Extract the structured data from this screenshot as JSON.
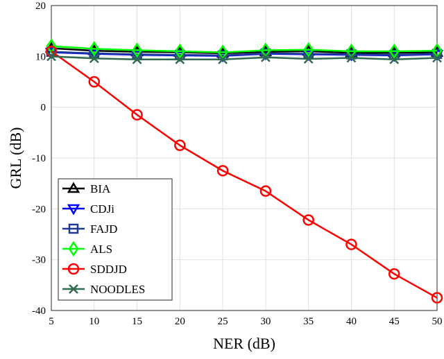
{
  "chart_data": {
    "type": "line",
    "xlabel": "NER (dB)",
    "ylabel": "GRL (dB)",
    "xlim": [
      5,
      50
    ],
    "ylim": [
      -40,
      20
    ],
    "xticks": [
      5,
      10,
      15,
      20,
      25,
      30,
      35,
      40,
      45,
      50
    ],
    "yticks": [
      -40,
      -30,
      -20,
      -10,
      0,
      10,
      20
    ],
    "grid": true,
    "legend_position": "bottom-left",
    "x": [
      5,
      10,
      15,
      20,
      25,
      30,
      35,
      40,
      45,
      50
    ],
    "series": [
      {
        "name": "BIA",
        "color": "#000000",
        "marker": "triangle-up",
        "values": [
          11.6,
          11.1,
          10.9,
          10.8,
          10.6,
          10.9,
          11.0,
          10.7,
          10.7,
          10.8
        ]
      },
      {
        "name": "CDJi",
        "color": "#0000ff",
        "marker": "triangle-down",
        "values": [
          10.8,
          10.5,
          10.3,
          10.2,
          10.1,
          10.5,
          10.4,
          10.3,
          10.2,
          10.4
        ]
      },
      {
        "name": "FAJD",
        "color": "#1f3a93",
        "marker": "square",
        "values": [
          10.9,
          10.6,
          10.4,
          10.3,
          10.2,
          10.6,
          10.5,
          10.4,
          10.3,
          10.5
        ]
      },
      {
        "name": "ALS",
        "color": "#00ff00",
        "marker": "diamond",
        "values": [
          12.0,
          11.5,
          11.2,
          11.0,
          10.8,
          11.2,
          11.3,
          11.0,
          11.0,
          11.1
        ]
      },
      {
        "name": "SDDJD",
        "color": "#ff0000",
        "marker": "circle",
        "values": [
          11.0,
          5.0,
          -1.5,
          -7.5,
          -12.5,
          -16.5,
          -22.2,
          -27.0,
          -32.8,
          -37.5
        ]
      },
      {
        "name": "NOODLES",
        "color": "#2e6b4f",
        "marker": "x",
        "values": [
          10.0,
          9.6,
          9.4,
          9.4,
          9.4,
          9.8,
          9.5,
          9.7,
          9.4,
          9.7
        ]
      }
    ]
  }
}
